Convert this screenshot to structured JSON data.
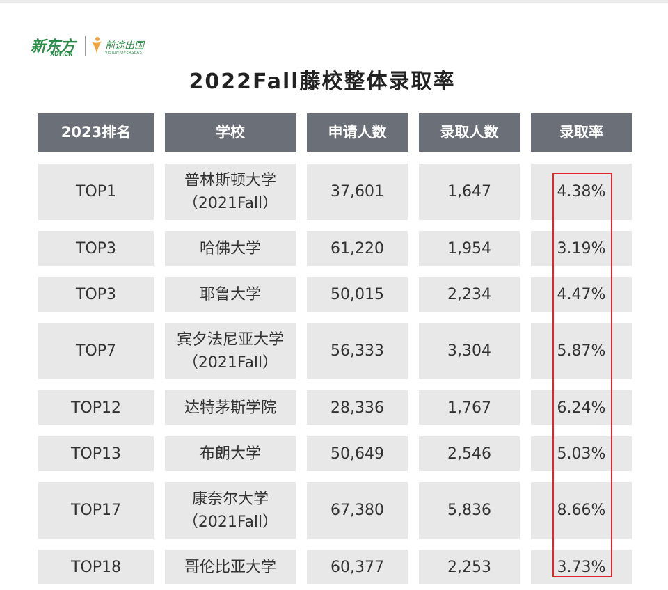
{
  "title": "2022Fall藤校整体录取率",
  "logo": {
    "brand_cn": "新东方",
    "brand_en": "XDF.CN",
    "sub_cn": "前途出国",
    "sub_en": "VISION OVERSEAS"
  },
  "headers": [
    "2023排名",
    "学校",
    "申请人数",
    "录取人数",
    "录取率"
  ],
  "rows": [
    {
      "rank": "TOP1",
      "school": "普林斯顿大学",
      "note": "（2021Fall）",
      "applicants": "37,601",
      "admitted": "1,647",
      "rate": "4.38%"
    },
    {
      "rank": "TOP3",
      "school": "哈佛大学",
      "note": "",
      "applicants": "61,220",
      "admitted": "1,954",
      "rate": "3.19%"
    },
    {
      "rank": "TOP3",
      "school": "耶鲁大学",
      "note": "",
      "applicants": "50,015",
      "admitted": "2,234",
      "rate": "4.47%"
    },
    {
      "rank": "TOP7",
      "school": "宾夕法尼亚大学",
      "note": "（2021Fall）",
      "applicants": "56,333",
      "admitted": "3,304",
      "rate": "5.87%"
    },
    {
      "rank": "TOP12",
      "school": "达特茅斯学院",
      "note": "",
      "applicants": "28,336",
      "admitted": "1,767",
      "rate": "6.24%"
    },
    {
      "rank": "TOP13",
      "school": "布朗大学",
      "note": "",
      "applicants": "50,649",
      "admitted": "2,546",
      "rate": "5.03%"
    },
    {
      "rank": "TOP17",
      "school": "康奈尔大学",
      "note": "（2021Fall）",
      "applicants": "67,380",
      "admitted": "5,836",
      "rate": "8.66%"
    },
    {
      "rank": "TOP18",
      "school": "哥伦比亚大学",
      "note": "",
      "applicants": "60,377",
      "admitted": "2,253",
      "rate": "3.73%"
    }
  ],
  "colors": {
    "header_bg": "#6b6f78",
    "cell_bg": "#e8e8e8",
    "highlight_border": "#e0262b",
    "brand_green": "#2c8c4a"
  }
}
